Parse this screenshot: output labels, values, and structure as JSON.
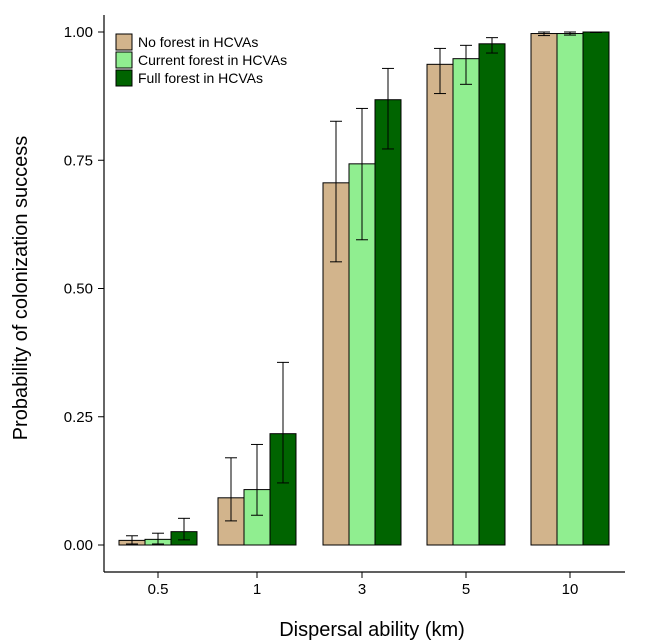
{
  "chart_data": {
    "type": "bar",
    "xlabel": "Dispersal ability (km)",
    "ylabel": "Probability of colonization success",
    "categories": [
      "0.5",
      "1",
      "3",
      "5",
      "10"
    ],
    "ylim": [
      0,
      1.04
    ],
    "yticks": [
      "0.00",
      "0.25",
      "0.50",
      "0.75",
      "1.00"
    ],
    "ytick_values": [
      0,
      0.25,
      0.5,
      0.75,
      1.0
    ],
    "grid": false,
    "legend_position": "top-left",
    "series": [
      {
        "name": "No forest in HCVAs",
        "color": "#d2b48c",
        "values": [
          0.009,
          0.092,
          0.706,
          0.937,
          0.997
        ],
        "err_low": [
          0.002,
          0.047,
          0.552,
          0.88,
          0.993
        ],
        "err_high": [
          0.018,
          0.17,
          0.826,
          0.968,
          1.0
        ]
      },
      {
        "name": "Current forest in HCVAs",
        "color": "#90ee90",
        "values": [
          0.011,
          0.108,
          0.743,
          0.948,
          0.997
        ],
        "err_low": [
          0.002,
          0.058,
          0.595,
          0.898,
          0.994
        ],
        "err_high": [
          0.023,
          0.196,
          0.851,
          0.974,
          1.0
        ]
      },
      {
        "name": "Full forest in HCVAs",
        "color": "#006400",
        "values": [
          0.026,
          0.217,
          0.868,
          0.977,
          1.0
        ],
        "err_low": [
          0.01,
          0.121,
          0.772,
          0.959,
          0.999
        ],
        "err_high": [
          0.052,
          0.356,
          0.929,
          0.989,
          1.0
        ]
      }
    ]
  }
}
